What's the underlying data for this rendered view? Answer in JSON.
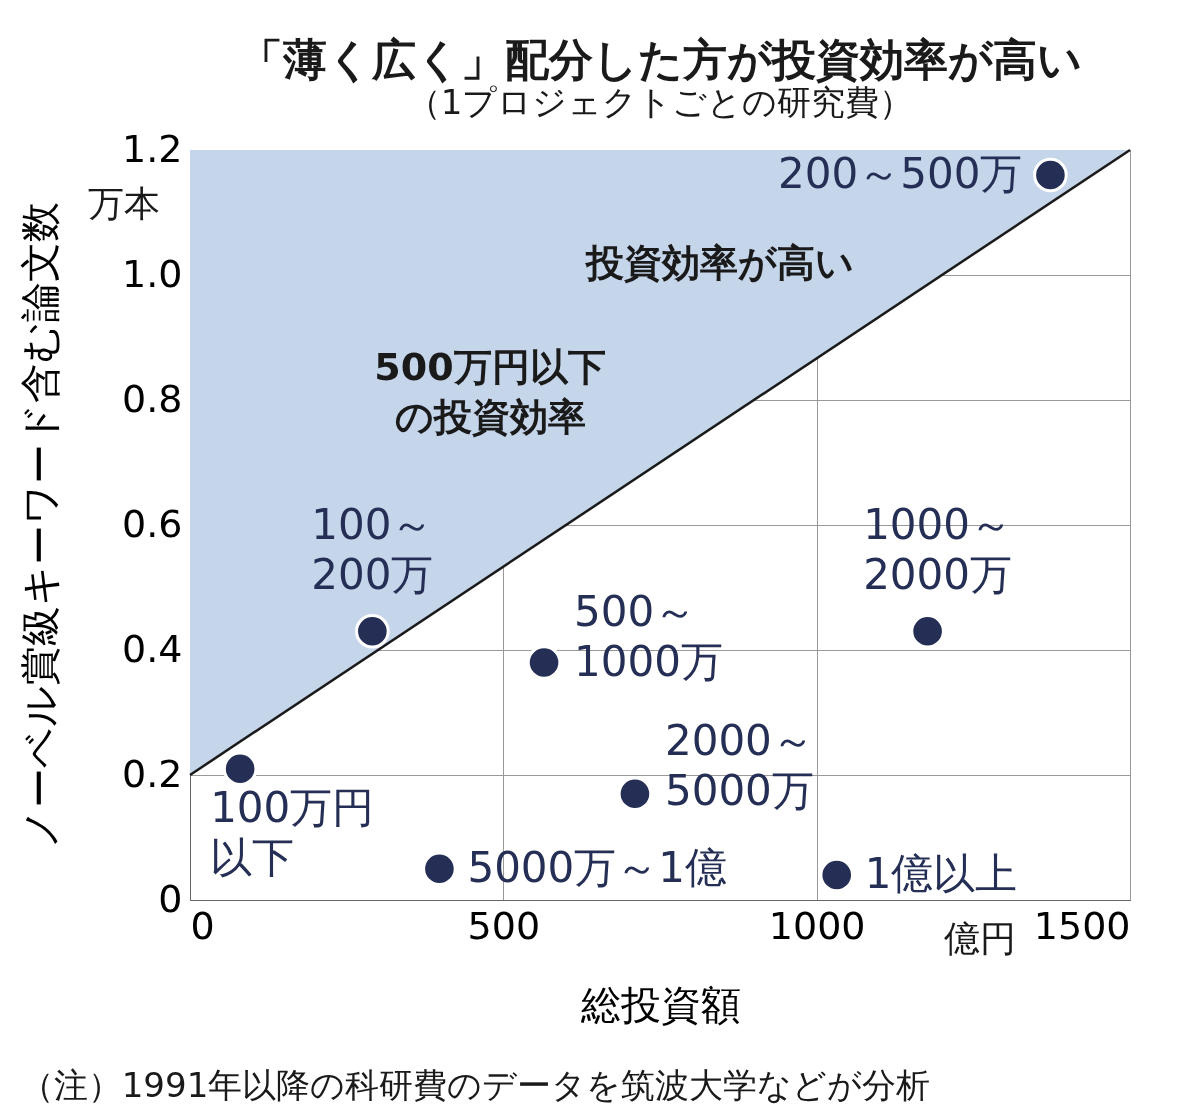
{
  "chart_data": {
    "type": "scatter",
    "title": "「薄く広く」配分した方が投資効率が高い",
    "subtitle": "（1プロジェクトごとの研究費）",
    "xlabel": "総投資額",
    "ylabel": "ノーベル賞級キーワード含む論文数",
    "xlim": [
      0,
      1500
    ],
    "xticks": [
      0,
      500,
      1000,
      1500
    ],
    "ylim": [
      0,
      1.2
    ],
    "yticks": [
      0,
      0.2,
      0.4,
      0.6,
      {
        "value": 0.8,
        "label": "0.8"
      },
      {
        "value": 1.0,
        "label": "1.0"
      },
      1.2
    ],
    "grid": true,
    "marker": "circle",
    "series": [
      {
        "name": "500万円以下の投資効率",
        "type": "line",
        "marker": "none",
        "color": "#1a1a1a",
        "x": [
          0,
          1500
        ],
        "values": [
          0.2,
          1.2
        ],
        "lower": [
          0.2,
          1.2
        ],
        "upper": [
          1.2,
          1.2
        ]
      },
      {
        "name": "100万円以下",
        "color": "#252f55",
        "x": [
          80
        ],
        "values": [
          0.21
        ]
      },
      {
        "name": "100～200万",
        "color": "#252f55",
        "x": [
          291
        ],
        "values": [
          0.43
        ]
      },
      {
        "name": "500～1000万",
        "color": "#252f55",
        "x": [
          565
        ],
        "values": [
          0.38
        ]
      },
      {
        "name": "2000～5000万",
        "color": "#252f55",
        "x": [
          710
        ],
        "values": [
          0.17
        ]
      },
      {
        "name": "5000万～1億",
        "color": "#252f55",
        "x": [
          398
        ],
        "values": [
          0.05
        ]
      },
      {
        "name": "1億以上",
        "color": "#252f55",
        "x": [
          1032
        ],
        "values": [
          0.04
        ]
      },
      {
        "name": "1000～2000万",
        "color": "#252f55",
        "x": [
          1177
        ],
        "values": [
          0.43
        ]
      },
      {
        "name": "200～500万",
        "color": "#252f55",
        "x": [
          1373
        ],
        "values": [
          1.16
        ]
      }
    ],
    "annotations": [
      "万本",
      "億円",
      "投資効率が高い",
      "（注）1991年以降の科研費のデータを筑波大学などが分析"
    ]
  }
}
